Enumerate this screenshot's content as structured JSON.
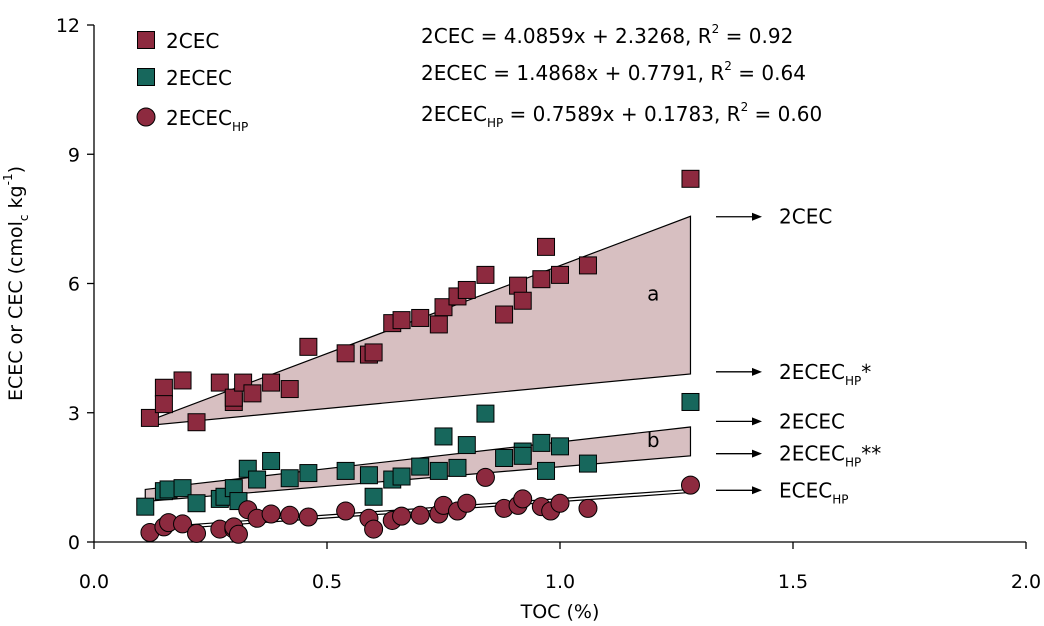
{
  "colors": {
    "cec": "#8d2a3f",
    "ecec": "#17675c",
    "ecechp": "#8d2a3f",
    "band": "#d7bfc1"
  },
  "chart_data": {
    "type": "scatter",
    "xlabel": "TOC (%)",
    "ylabel": {
      "main": "ECEC or CEC (cmol",
      "sub": "c",
      "unit": " kg",
      "sup": "-1",
      "close": ")"
    },
    "xlim": [
      0,
      2.0
    ],
    "ylim": [
      0,
      12
    ],
    "xticks": [
      0.0,
      0.5,
      1.0,
      1.5,
      2.0
    ],
    "xtick_labels": [
      "0.0",
      "0.5",
      "1.0",
      "1.5",
      "2.0"
    ],
    "yticks": [
      0,
      3,
      6,
      9,
      12
    ],
    "ytick_labels": [
      "0",
      "3",
      "6",
      "9",
      "12"
    ],
    "legend": [
      {
        "marker": "square",
        "color_key": "cec",
        "label": "2CEC",
        "sub": ""
      },
      {
        "marker": "square",
        "color_key": "ecec",
        "label": "2ECEC",
        "sub": ""
      },
      {
        "marker": "circle",
        "color_key": "ecechp",
        "label": "2ECEC",
        "sub": "HP"
      }
    ],
    "equations": [
      {
        "lhs": "2CEC",
        "lhs_sub": "",
        "rhs": " = 4.0859x + 2.3268, R",
        "sup": "2",
        "tail": " = 0.92"
      },
      {
        "lhs": "2ECEC",
        "lhs_sub": "",
        "rhs": " = 1.4868x + 0.7791, R",
        "sup": "2",
        "tail": " = 0.64"
      },
      {
        "lhs": "2ECEC",
        "lhs_sub": "HP",
        "rhs": " = 0.7589x + 0.1783, R",
        "sup": "2",
        "tail": " = 0.60"
      }
    ],
    "regions": [
      {
        "label": "a",
        "x": 1.2,
        "y": 5.6,
        "polygon": [
          [
            0.11,
            2.78
          ],
          [
            1.28,
            7.56
          ],
          [
            1.28,
            3.9
          ],
          [
            0.11,
            2.7
          ]
        ]
      },
      {
        "label": "b",
        "x": 1.2,
        "y": 2.2,
        "polygon": [
          [
            0.11,
            1.22
          ],
          [
            1.28,
            2.67
          ],
          [
            1.28,
            2.0
          ],
          [
            0.11,
            0.94
          ]
        ]
      }
    ],
    "ecechp_line": [
      [
        0.11,
        0.26
      ],
      [
        1.28,
        1.15
      ]
    ],
    "arrow_labels": [
      {
        "main": "2CEC",
        "sub": "",
        "suffix": "",
        "y": 7.55
      },
      {
        "main": "2ECEC",
        "sub": "HP",
        "suffix": "*",
        "y": 3.95
      },
      {
        "main": "2ECEC",
        "sub": "",
        "suffix": "",
        "y": 2.8
      },
      {
        "main": "2ECEC",
        "sub": "HP",
        "suffix": "**",
        "y": 2.05
      },
      {
        "main": "ECEC",
        "sub": "HP",
        "suffix": "",
        "y": 1.2
      }
    ],
    "series": [
      {
        "key": "2CEC",
        "marker": "square",
        "color_key": "cec",
        "points": [
          [
            0.12,
            2.88
          ],
          [
            0.15,
            3.58
          ],
          [
            0.15,
            3.2
          ],
          [
            0.19,
            3.75
          ],
          [
            0.22,
            2.78
          ],
          [
            0.27,
            3.7
          ],
          [
            0.3,
            3.25
          ],
          [
            0.3,
            3.35
          ],
          [
            0.32,
            3.7
          ],
          [
            0.34,
            3.45
          ],
          [
            0.38,
            3.7
          ],
          [
            0.42,
            3.55
          ],
          [
            0.46,
            4.53
          ],
          [
            0.54,
            4.38
          ],
          [
            0.59,
            4.35
          ],
          [
            0.6,
            4.4
          ],
          [
            0.64,
            5.08
          ],
          [
            0.66,
            5.15
          ],
          [
            0.7,
            5.2
          ],
          [
            0.74,
            5.05
          ],
          [
            0.75,
            5.45
          ],
          [
            0.78,
            5.7
          ],
          [
            0.8,
            5.85
          ],
          [
            0.84,
            6.2
          ],
          [
            0.88,
            5.28
          ],
          [
            0.91,
            5.95
          ],
          [
            0.92,
            5.6
          ],
          [
            0.96,
            6.1
          ],
          [
            0.97,
            6.85
          ],
          [
            1.0,
            6.2
          ],
          [
            1.06,
            6.42
          ],
          [
            1.28,
            8.43
          ]
        ]
      },
      {
        "key": "2ECEC",
        "marker": "square",
        "color_key": "ecec",
        "points": [
          [
            0.11,
            0.82
          ],
          [
            0.15,
            1.18
          ],
          [
            0.16,
            1.22
          ],
          [
            0.19,
            1.25
          ],
          [
            0.22,
            0.9
          ],
          [
            0.27,
            1.0
          ],
          [
            0.28,
            1.05
          ],
          [
            0.3,
            1.25
          ],
          [
            0.31,
            0.95
          ],
          [
            0.33,
            1.7
          ],
          [
            0.35,
            1.45
          ],
          [
            0.38,
            1.88
          ],
          [
            0.42,
            1.48
          ],
          [
            0.46,
            1.6
          ],
          [
            0.54,
            1.65
          ],
          [
            0.59,
            1.55
          ],
          [
            0.6,
            1.05
          ],
          [
            0.64,
            1.45
          ],
          [
            0.66,
            1.52
          ],
          [
            0.7,
            1.75
          ],
          [
            0.74,
            1.65
          ],
          [
            0.75,
            2.45
          ],
          [
            0.78,
            1.72
          ],
          [
            0.8,
            2.25
          ],
          [
            0.84,
            2.98
          ],
          [
            0.88,
            1.95
          ],
          [
            0.92,
            2.1
          ],
          [
            0.92,
            2.0
          ],
          [
            0.96,
            2.3
          ],
          [
            0.97,
            1.65
          ],
          [
            1.0,
            2.22
          ],
          [
            1.06,
            1.82
          ],
          [
            1.28,
            3.25
          ]
        ]
      },
      {
        "key": "2ECEC_HP",
        "marker": "circle",
        "color_key": "ecechp",
        "points": [
          [
            0.12,
            0.22
          ],
          [
            0.15,
            0.35
          ],
          [
            0.16,
            0.45
          ],
          [
            0.19,
            0.42
          ],
          [
            0.22,
            0.2
          ],
          [
            0.27,
            0.3
          ],
          [
            0.3,
            0.3
          ],
          [
            0.3,
            0.35
          ],
          [
            0.31,
            0.18
          ],
          [
            0.33,
            0.75
          ],
          [
            0.35,
            0.55
          ],
          [
            0.38,
            0.65
          ],
          [
            0.42,
            0.62
          ],
          [
            0.46,
            0.58
          ],
          [
            0.54,
            0.72
          ],
          [
            0.59,
            0.55
          ],
          [
            0.6,
            0.3
          ],
          [
            0.64,
            0.5
          ],
          [
            0.66,
            0.6
          ],
          [
            0.7,
            0.62
          ],
          [
            0.74,
            0.65
          ],
          [
            0.75,
            0.85
          ],
          [
            0.78,
            0.72
          ],
          [
            0.8,
            0.9
          ],
          [
            0.84,
            1.5
          ],
          [
            0.88,
            0.78
          ],
          [
            0.91,
            0.85
          ],
          [
            0.92,
            1.0
          ],
          [
            0.96,
            0.82
          ],
          [
            0.98,
            0.72
          ],
          [
            1.0,
            0.9
          ],
          [
            1.06,
            0.78
          ],
          [
            1.28,
            1.32
          ]
        ]
      }
    ]
  }
}
